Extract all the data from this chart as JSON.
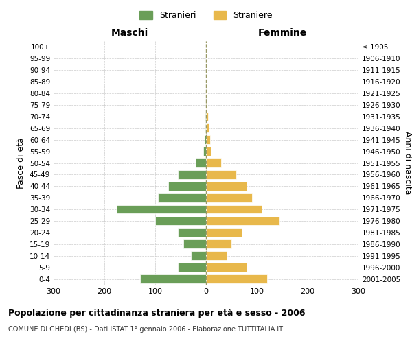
{
  "age_groups": [
    "0-4",
    "5-9",
    "10-14",
    "15-19",
    "20-24",
    "25-29",
    "30-34",
    "35-39",
    "40-44",
    "45-49",
    "50-54",
    "55-59",
    "60-64",
    "65-69",
    "70-74",
    "75-79",
    "80-84",
    "85-89",
    "90-94",
    "95-99",
    "100+"
  ],
  "birth_years": [
    "2001-2005",
    "1996-2000",
    "1991-1995",
    "1986-1990",
    "1981-1985",
    "1976-1980",
    "1971-1975",
    "1966-1970",
    "1961-1965",
    "1956-1960",
    "1951-1955",
    "1946-1950",
    "1941-1945",
    "1936-1940",
    "1931-1935",
    "1926-1930",
    "1921-1925",
    "1916-1920",
    "1911-1915",
    "1906-1910",
    "≤ 1905"
  ],
  "males": [
    130,
    55,
    30,
    45,
    55,
    100,
    175,
    95,
    75,
    55,
    20,
    5,
    3,
    2,
    1,
    0,
    0,
    0,
    0,
    0,
    0
  ],
  "females": [
    120,
    80,
    40,
    50,
    70,
    145,
    110,
    90,
    80,
    60,
    30,
    10,
    8,
    6,
    4,
    2,
    2,
    0,
    0,
    0,
    0
  ],
  "male_color": "#6a9e58",
  "female_color": "#e8b84b",
  "title": "Popolazione per cittadinanza straniera per età e sesso - 2006",
  "subtitle": "COMUNE DI GHEDI (BS) - Dati ISTAT 1° gennaio 2006 - Elaborazione TUTTITALIA.IT",
  "left_label": "Maschi",
  "right_label": "Femmine",
  "y_label": "Fasce di età",
  "right_y_label": "Anni di nascita",
  "legend_male": "Stranieri",
  "legend_female": "Straniere",
  "xlim": 300,
  "background_color": "#ffffff",
  "grid_color": "#cccccc",
  "dashed_line_color": "#999966"
}
